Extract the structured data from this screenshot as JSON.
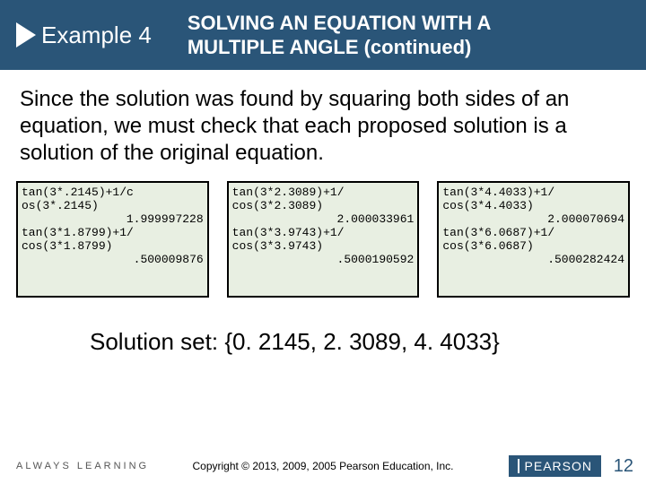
{
  "header": {
    "example_label": "Example 4",
    "title_line1": "SOLVING AN EQUATION WITH A",
    "title_line2": "MULTIPLE ANGLE (continued)"
  },
  "body_text": "Since the solution was found by squaring both sides of an equation, we must check that each proposed solution is a solution of the original equation.",
  "calc_screens": [
    {
      "l1": "tan(3*.2145)+1/c",
      "l2": "os(3*.2145)",
      "r1": "1.999997228",
      "l3": "tan(3*1.8799)+1/",
      "l4": "cos(3*1.8799)",
      "r2": ".500009876"
    },
    {
      "l1": "tan(3*2.3089)+1/",
      "l2": "cos(3*2.3089)",
      "r1": "2.000033961",
      "l3": "tan(3*3.9743)+1/",
      "l4": "cos(3*3.9743)",
      "r2": ".5000190592"
    },
    {
      "l1": "tan(3*4.4033)+1/",
      "l2": "cos(3*4.4033)",
      "r1": "2.000070694",
      "l3": "tan(3*6.0687)+1/",
      "l4": "cos(3*6.0687)",
      "r2": ".5000282424"
    }
  ],
  "solution_text": "Solution set: {0. 2145, 2. 3089, 4. 4033}",
  "footer": {
    "always_learning": "ALWAYS LEARNING",
    "copyright": "Copyright © 2013, 2009, 2005 Pearson Education, Inc.",
    "brand": "PEARSON",
    "slide_number": "12"
  },
  "colors": {
    "header_bg": "#2a5578",
    "calc_bg": "#e8efe2",
    "page_bg": "#ffffff"
  }
}
